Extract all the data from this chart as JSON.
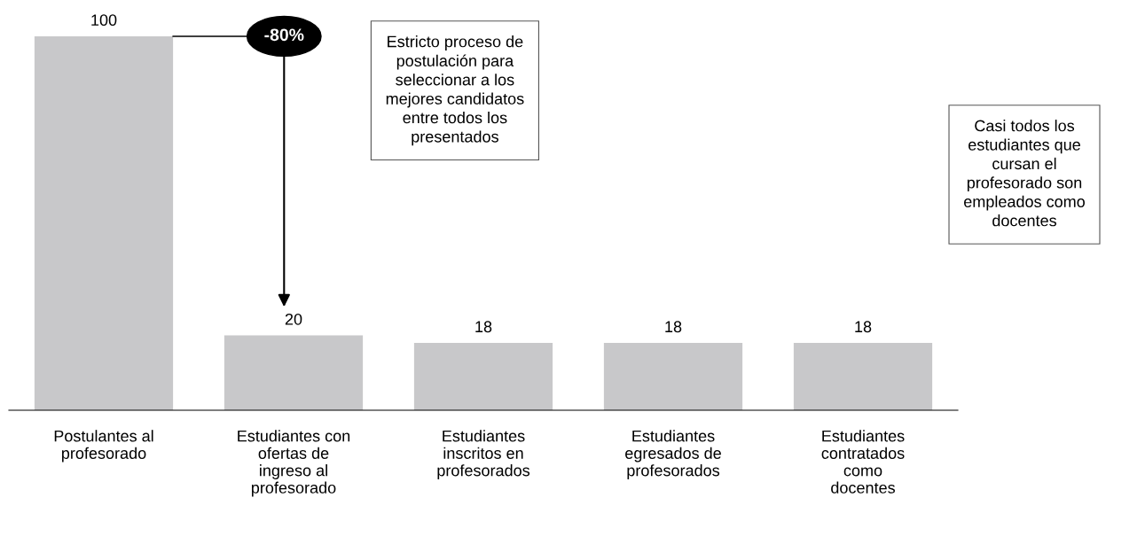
{
  "chart_data": {
    "type": "bar",
    "categories": [
      "Postulantes al\nprofesorado",
      "Estudiantes con\nofertas de\ningreso al\nprofesorado",
      "Estudiantes\ninscritos en\nprofesorados",
      "Estudiantes\negresados de\nprofesorados",
      "Estudiantes\ncontratados\ncomo\ndocentes"
    ],
    "values": [
      100,
      20,
      18,
      18,
      18
    ],
    "color": "#c8c8ca",
    "data_labels": true,
    "tick_labels": "x",
    "grid": false,
    "legend": false,
    "annotations": [
      "-80%",
      "Estricto proceso de\npostulación para\nseleccionar a los\nmejores candidatos\nentre todos los\npresentados",
      "Casi todos los\nestudiantes que\ncursan el\nprofesorado son\nempleados como\ndocentes"
    ]
  }
}
